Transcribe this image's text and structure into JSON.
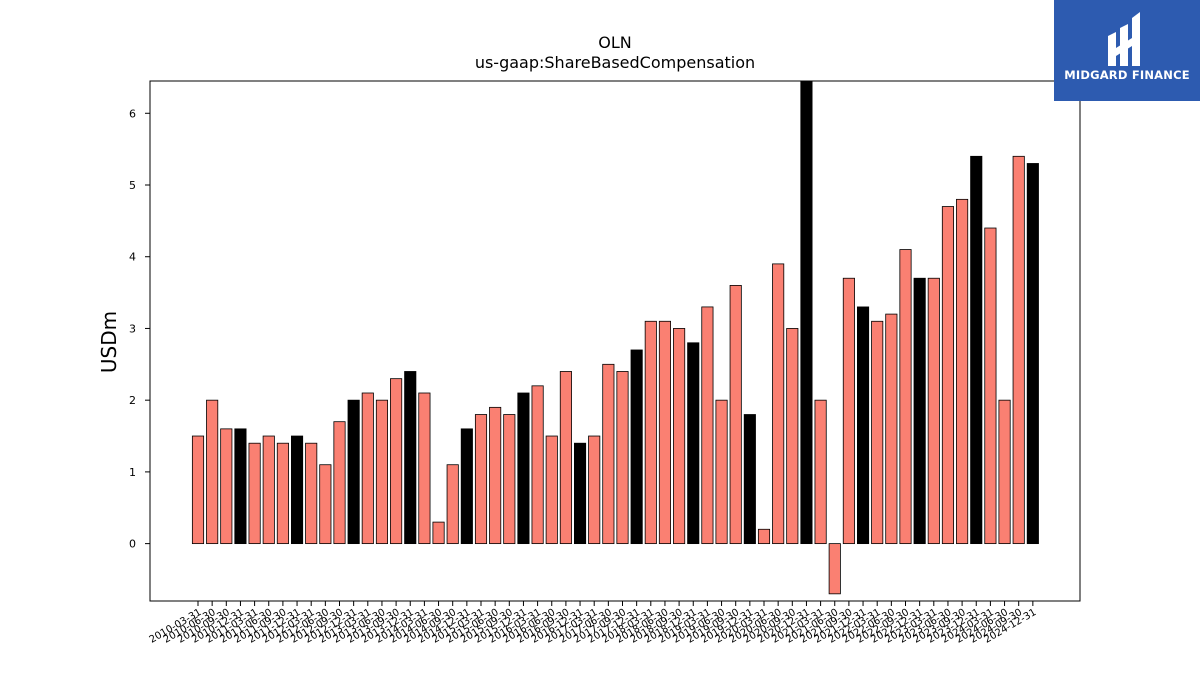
{
  "chart_data": {
    "type": "bar",
    "title": "OLN",
    "subtitle": "us-gaap:ShareBasedCompensation",
    "ylabel": "USDm",
    "xlabel": "",
    "ylim": [
      -0.8,
      6.45
    ],
    "yticks": [
      0,
      1,
      2,
      3,
      4,
      5,
      6
    ],
    "grid": false,
    "categories": [
      "2010-03-31",
      "2010-06-30",
      "2010-09-30",
      "2010-12-31",
      "2011-03-31",
      "2011-06-30",
      "2011-09-30",
      "2011-12-31",
      "2012-03-31",
      "2012-06-30",
      "2012-09-30",
      "2012-12-31",
      "2013-03-31",
      "2013-06-30",
      "2013-09-30",
      "2013-12-31",
      "2014-03-31",
      "2014-06-30",
      "2014-09-30",
      "2014-12-31",
      "2015-03-31",
      "2015-06-30",
      "2015-09-30",
      "2015-12-31",
      "2016-03-31",
      "2016-06-30",
      "2016-09-30",
      "2016-12-31",
      "2017-03-31",
      "2017-06-30",
      "2017-09-30",
      "2017-12-31",
      "2018-03-31",
      "2018-06-30",
      "2018-09-30",
      "2018-12-31",
      "2019-03-31",
      "2019-06-30",
      "2019-09-30",
      "2019-12-31",
      "2020-03-31",
      "2020-06-30",
      "2020-09-30",
      "2020-12-31",
      "2021-03-31",
      "2021-06-30",
      "2021-09-30",
      "2021-12-31",
      "2022-03-31",
      "2022-06-30",
      "2022-09-30",
      "2022-12-31",
      "2023-03-31",
      "2023-06-30",
      "2023-09-30",
      "2023-12-31",
      "2024-03-31",
      "2024-06-30",
      "2024-09-30",
      "2024-12-31"
    ],
    "values": [
      1.5,
      2.0,
      1.6,
      1.6,
      1.4,
      1.5,
      1.4,
      1.5,
      1.4,
      1.1,
      1.7,
      2.0,
      2.1,
      2.0,
      2.3,
      2.4,
      2.1,
      0.3,
      1.1,
      1.6,
      1.8,
      1.9,
      1.8,
      2.1,
      2.2,
      1.5,
      2.4,
      1.4,
      1.5,
      2.5,
      2.4,
      2.7,
      3.1,
      3.1,
      3.0,
      2.8,
      3.3,
      2.0,
      3.6,
      1.8,
      0.2,
      3.9,
      3.0,
      6.5,
      2.0,
      -0.7,
      3.7,
      3.3,
      3.1,
      3.2,
      4.1,
      3.7,
      3.7,
      4.7,
      4.8,
      5.4,
      4.4,
      2.0,
      5.4,
      5.3
    ],
    "colors": {
      "quarter": "#fa8072",
      "year_end": "#000000",
      "edge": "#000000"
    }
  },
  "logo": {
    "text": "MIDGARD FINANCE",
    "background": "#2d5bb0"
  }
}
